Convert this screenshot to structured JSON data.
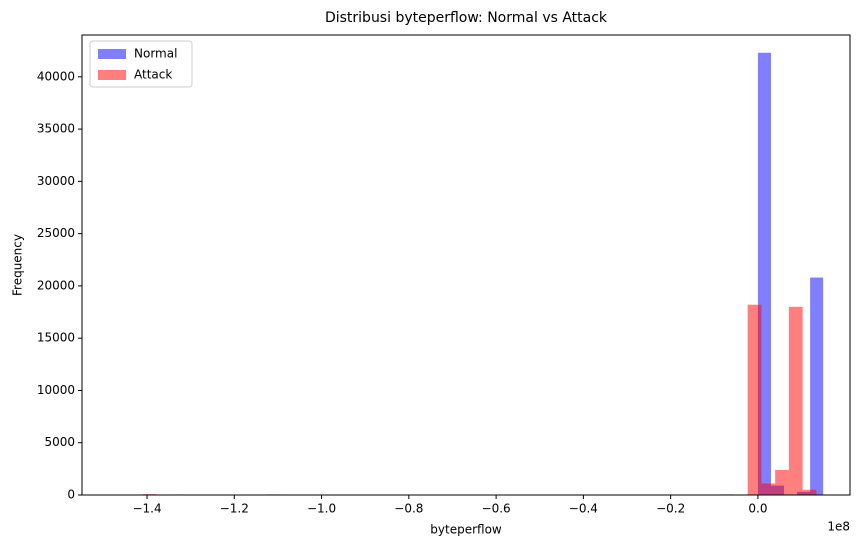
{
  "chart_data": {
    "type": "histogram",
    "title": "Distribusi byteperflow: Normal vs Attack",
    "x_label": "byteperflow",
    "y_label": "Frequency",
    "x_offset_label": "1e8",
    "xlim": [
      -1.549,
      0.211
    ],
    "ylim": [
      0,
      44000
    ],
    "xticks": [
      {
        "value": -1.4,
        "label": "−1.4"
      },
      {
        "value": -1.2,
        "label": "−1.2"
      },
      {
        "value": -1.0,
        "label": "−1.0"
      },
      {
        "value": -0.8,
        "label": "−0.8"
      },
      {
        "value": -0.6,
        "label": "−0.6"
      },
      {
        "value": -0.4,
        "label": "−0.4"
      },
      {
        "value": -0.2,
        "label": "−0.2"
      },
      {
        "value": 0,
        "label": "0.0"
      }
    ],
    "yticks": [
      0,
      5000,
      10000,
      15000,
      20000,
      25000,
      30000,
      35000,
      40000
    ],
    "legend": "upper left",
    "alpha": 0.5,
    "series": [
      {
        "name": "Normal",
        "color": "#0000ff",
        "bins": [
          -1.3455,
          -1.3156,
          -1.2857,
          -1.2558,
          -1.2259,
          -1.196,
          -1.1661,
          -1.1362,
          -1.1063,
          -1.0764,
          -1.0465,
          -1.0166,
          -0.9867,
          -0.9568,
          -0.9269,
          -0.897,
          -0.8671,
          -0.8372,
          -0.8073,
          -0.7774,
          -0.7475,
          -0.7176,
          -0.6877,
          -0.6578,
          -0.6279,
          -0.598,
          -0.5681,
          -0.5382,
          -0.5083,
          -0.4784,
          -0.4485,
          -0.4186,
          -0.3887,
          -0.3588,
          -0.3289,
          -0.299,
          -0.2691,
          -0.2392,
          -0.2093,
          -0.1794,
          -0.1495,
          -0.1196,
          -0.0897,
          -0.0598,
          -0.0299,
          0,
          0.0299,
          0.0598,
          0.0897,
          0.1196,
          0.1495
        ],
        "values": [
          50,
          0,
          0,
          0,
          0,
          0,
          0,
          0,
          0,
          0,
          0,
          0,
          0,
          0,
          0,
          0,
          0,
          0,
          0,
          0,
          0,
          0,
          0,
          0,
          0,
          0,
          0,
          0,
          0,
          0,
          0,
          0,
          0,
          0,
          0,
          0,
          0,
          0,
          0,
          0,
          0,
          0,
          0,
          0,
          0,
          42300,
          900,
          0,
          300,
          20800
        ]
      },
      {
        "name": "Attack",
        "color": "#ff0000",
        "bins": [
          -1.4095,
          -1.378,
          -1.3465,
          -1.315,
          -1.2835,
          -1.252,
          -1.2205,
          -1.189,
          -1.1575,
          -1.126,
          -1.0945,
          -1.063,
          -1.0315,
          -1.0,
          -0.9685,
          -0.937,
          -0.9055,
          -0.874,
          -0.8425,
          -0.811,
          -0.7795,
          -0.748,
          -0.7165,
          -0.685,
          -0.6535,
          -0.622,
          -0.5905,
          -0.559,
          -0.5275,
          -0.496,
          -0.4645,
          -0.433,
          -0.4015,
          -0.37,
          -0.3385,
          -0.307,
          -0.2755,
          -0.244,
          -0.2125,
          -0.181,
          -0.1495,
          -0.118,
          -0.0865,
          -0.055,
          -0.0235,
          0.008,
          0.0395,
          0.071,
          0.1025,
          0.134,
          0.1655
        ],
        "values": [
          80,
          0,
          0,
          0,
          0,
          0,
          0,
          0,
          0,
          60,
          0,
          0,
          0,
          0,
          0,
          0,
          0,
          0,
          0,
          0,
          0,
          0,
          0,
          0,
          0,
          0,
          0,
          0,
          0,
          0,
          0,
          0,
          0,
          0,
          0,
          0,
          0,
          0,
          0,
          0,
          0,
          0,
          60,
          0,
          18200,
          1100,
          2400,
          18000,
          500,
          0
        ]
      }
    ]
  }
}
